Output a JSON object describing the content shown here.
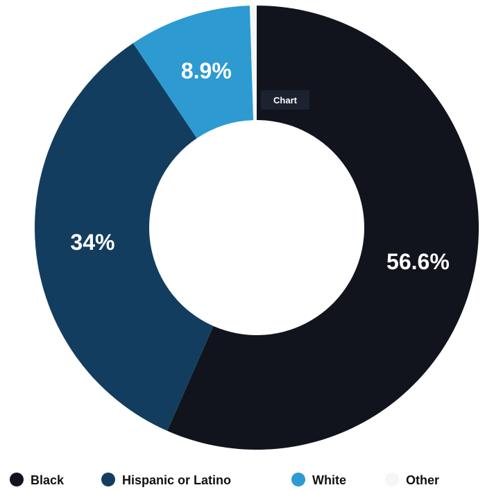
{
  "chart_data": {
    "type": "pie",
    "donut": true,
    "title": "",
    "tooltip": "Chart",
    "slices": [
      {
        "name": "Black",
        "value": 56.6,
        "label": "56.6%",
        "color": "#11141c"
      },
      {
        "name": "Hispanic or Latino",
        "value": 34,
        "label": "34%",
        "color": "#133d5e"
      },
      {
        "name": "White",
        "value": 8.9,
        "label": "8.9%",
        "color": "#2d9ad2"
      },
      {
        "name": "Other",
        "value": 0.5,
        "label": "",
        "color": "#f4f6f8"
      }
    ],
    "legend_position": "bottom"
  }
}
